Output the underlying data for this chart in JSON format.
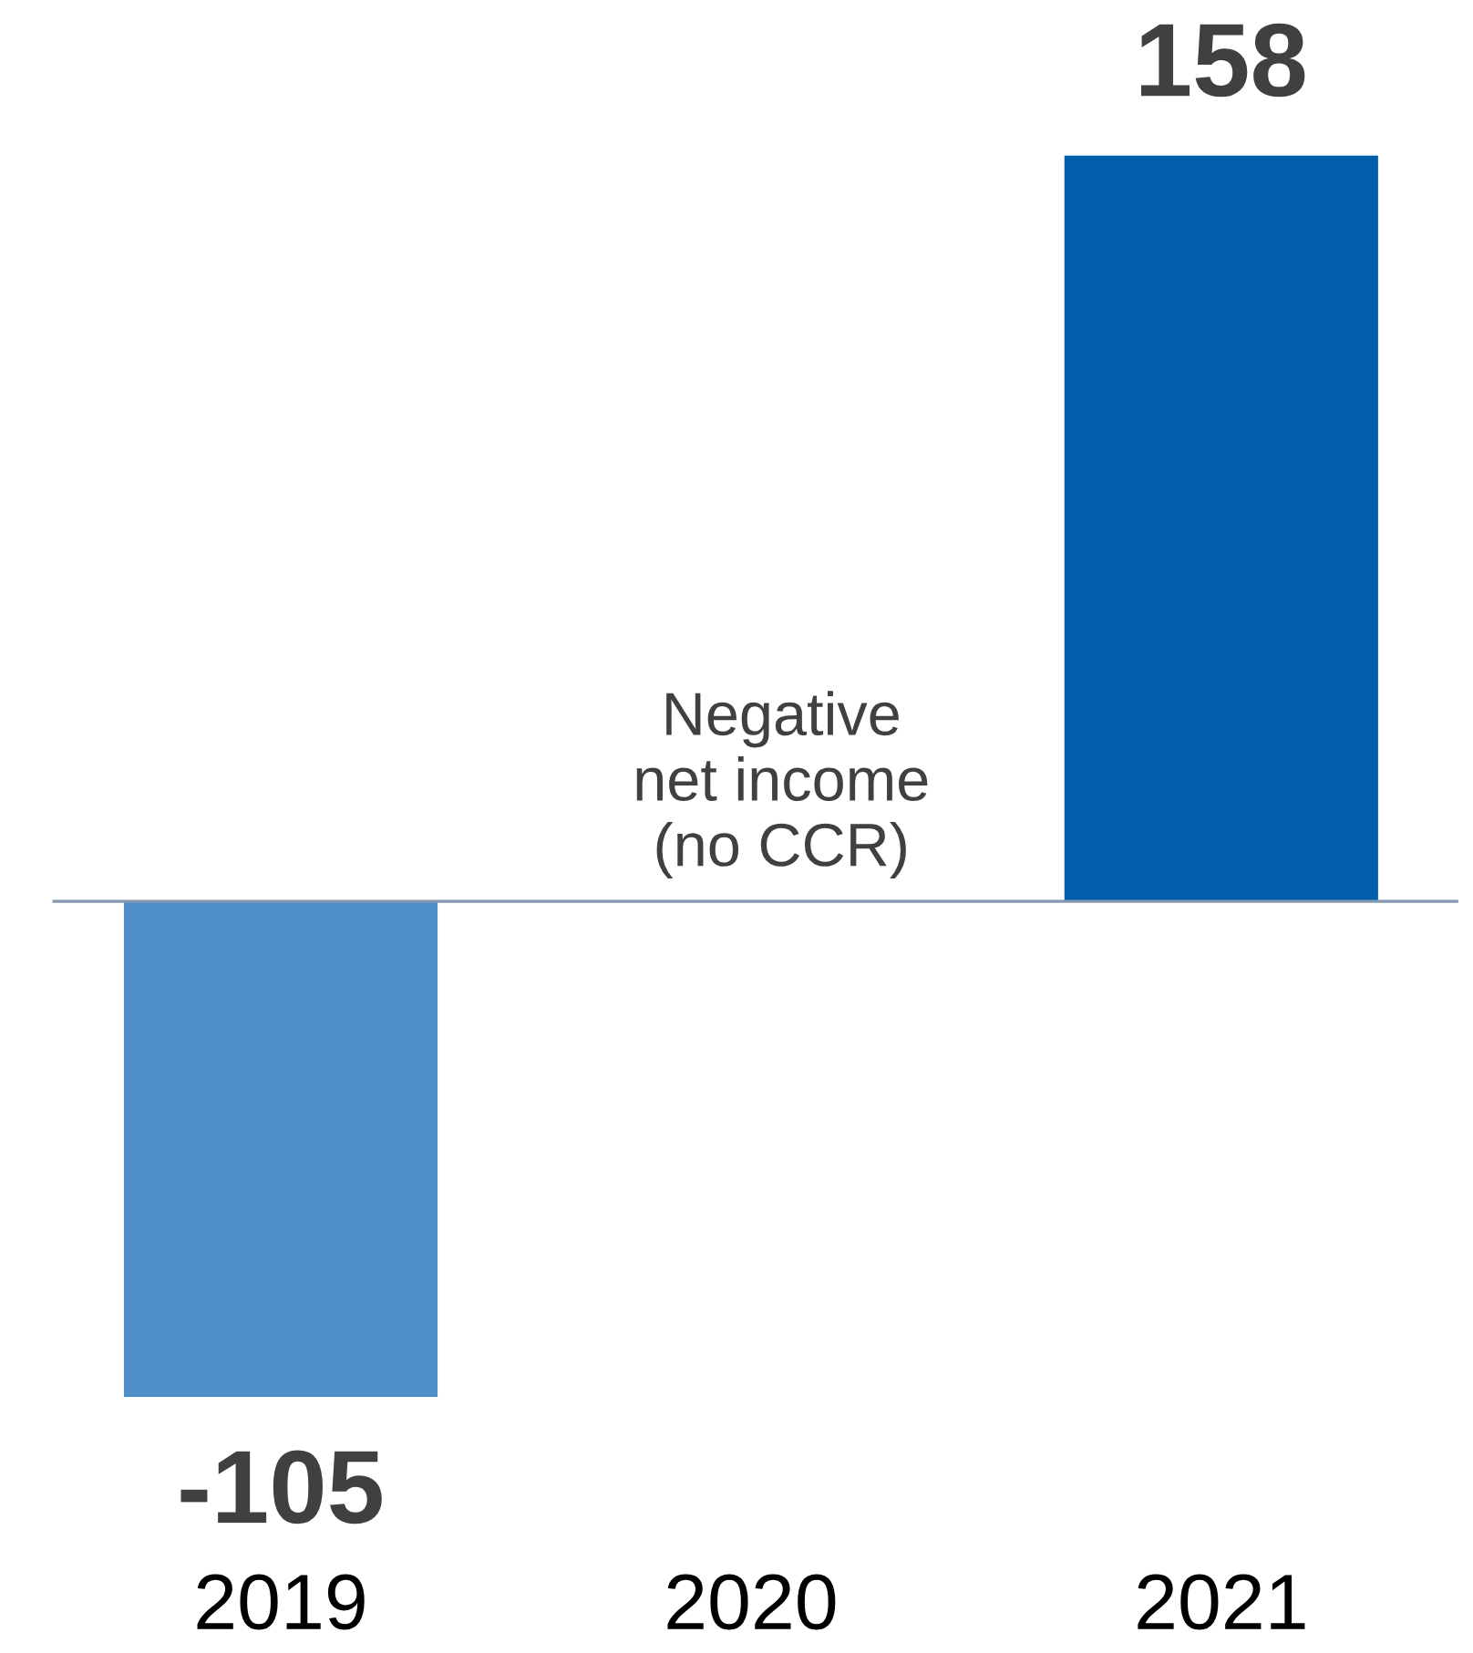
{
  "chart_data": {
    "type": "bar",
    "categories": [
      "2019",
      "2020",
      "2021"
    ],
    "values": [
      -105,
      null,
      158
    ],
    "colors": [
      "#4d8fc6",
      null,
      "#005eac"
    ],
    "data_labels": true,
    "ref_lines": [
      {
        "axis": "y",
        "value": 0,
        "color": "#8497b0"
      }
    ],
    "annotations": [
      {
        "text": "Negative\nnet income\n(no CCR)",
        "x": "2020",
        "y": 0
      }
    ],
    "grid": false,
    "legend": false
  }
}
